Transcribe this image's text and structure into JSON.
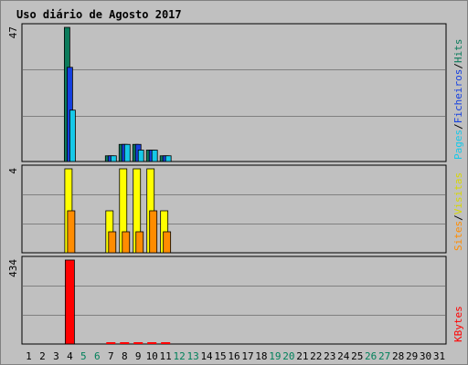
{
  "chart_data": {
    "type": "bar",
    "title": "Uso diário de Agosto 2017",
    "days": [
      "1",
      "2",
      "3",
      "4",
      "5",
      "6",
      "7",
      "8",
      "9",
      "10",
      "11",
      "12",
      "13",
      "14",
      "15",
      "16",
      "17",
      "18",
      "19",
      "20",
      "21",
      "22",
      "23",
      "24",
      "25",
      "26",
      "27",
      "28",
      "29",
      "30",
      "31"
    ],
    "weekend_days": [
      "5",
      "6",
      "12",
      "13",
      "19",
      "20",
      "26",
      "27"
    ],
    "panels": [
      {
        "name": "traffic",
        "ymax_label": "47",
        "ymax": 47,
        "series": [
          {
            "name": "Hits",
            "color": "#0b7b5b",
            "values": [
              0,
              0,
              0,
              47,
              0,
              0,
              2,
              6,
              6,
              4,
              2,
              0,
              0,
              0,
              0,
              0,
              0,
              0,
              0,
              0,
              0,
              0,
              0,
              0,
              0,
              0,
              0,
              0,
              0,
              0,
              0
            ]
          },
          {
            "name": "Ficheiros",
            "color": "#1540e0",
            "values": [
              0,
              0,
              0,
              33,
              0,
              0,
              2,
              6,
              6,
              4,
              2,
              0,
              0,
              0,
              0,
              0,
              0,
              0,
              0,
              0,
              0,
              0,
              0,
              0,
              0,
              0,
              0,
              0,
              0,
              0,
              0
            ]
          },
          {
            "name": "Pages",
            "color": "#16c8e8",
            "values": [
              0,
              0,
              0,
              18,
              0,
              0,
              2,
              6,
              4,
              4,
              2,
              0,
              0,
              0,
              0,
              0,
              0,
              0,
              0,
              0,
              0,
              0,
              0,
              0,
              0,
              0,
              0,
              0,
              0,
              0,
              0
            ]
          }
        ]
      },
      {
        "name": "visitors",
        "ymax_label": "4",
        "ymax": 4,
        "series": [
          {
            "name": "Visitas",
            "color": "#ffff00",
            "values": [
              0,
              0,
              0,
              4,
              0,
              0,
              2,
              4,
              4,
              4,
              2,
              0,
              0,
              0,
              0,
              0,
              0,
              0,
              0,
              0,
              0,
              0,
              0,
              0,
              0,
              0,
              0,
              0,
              0,
              0,
              0
            ]
          },
          {
            "name": "Sites",
            "color": "#ff8c00",
            "values": [
              0,
              0,
              0,
              2,
              0,
              0,
              1,
              1,
              1,
              2,
              1,
              0,
              0,
              0,
              0,
              0,
              0,
              0,
              0,
              0,
              0,
              0,
              0,
              0,
              0,
              0,
              0,
              0,
              0,
              0,
              0
            ]
          }
        ]
      },
      {
        "name": "kbytes",
        "ymax_label": "434",
        "ymax": 434,
        "series": [
          {
            "name": "KBytes",
            "color": "#ff0000",
            "values": [
              0,
              0,
              0,
              434,
              0,
              0,
              2,
              2,
              2,
              2,
              2,
              0,
              0,
              0,
              0,
              0,
              0,
              0,
              0,
              0,
              0,
              0,
              0,
              0,
              0,
              0,
              0,
              0,
              0,
              0,
              0
            ]
          }
        ]
      }
    ],
    "right_labels": {
      "traffic": [
        {
          "text": "Hits",
          "color": "#0b7b5b"
        },
        {
          "text": "/",
          "color": "#000000"
        },
        {
          "text": "Ficheiros",
          "color": "#1540e0"
        },
        {
          "text": "/",
          "color": "#000000"
        },
        {
          "text": "Pages",
          "color": "#16c8e8"
        }
      ],
      "visitors": [
        {
          "text": "Visitas",
          "color": "#d8d800"
        },
        {
          "text": "/",
          "color": "#000000"
        },
        {
          "text": "Sites",
          "color": "#ff8c00"
        }
      ],
      "kbytes": [
        {
          "text": "KBytes",
          "color": "#ff0000"
        }
      ]
    },
    "colors": {
      "background": "#c0c0c0",
      "title": "#0000ff",
      "weekday_tick": "#000000",
      "weekend_tick": "#00805a",
      "gridline": "#808080",
      "separator": "#000000"
    }
  }
}
